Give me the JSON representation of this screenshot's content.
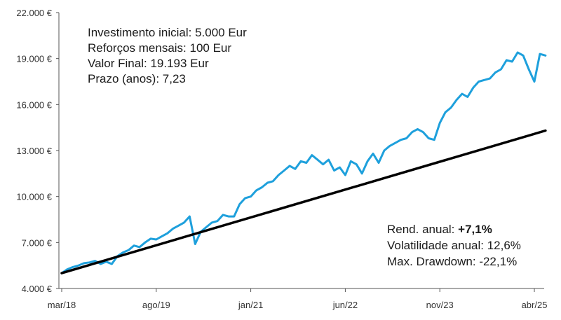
{
  "chart_data": {
    "type": "line",
    "title": "",
    "xlabel": "",
    "ylabel": "",
    "ylim": [
      4000,
      22000
    ],
    "yticks": [
      {
        "value": 4000,
        "label": "4.000 €"
      },
      {
        "value": 7000,
        "label": "7.000 €"
      },
      {
        "value": 10000,
        "label": "10.000 €"
      },
      {
        "value": 13000,
        "label": "13.000 €"
      },
      {
        "value": 16000,
        "label": "16.000 €"
      },
      {
        "value": 19000,
        "label": "19.000 €"
      },
      {
        "value": 22000,
        "label": "22.000 €"
      }
    ],
    "xlim": [
      "2018-03",
      "2025-05"
    ],
    "xticks": [
      {
        "date": "2018-03",
        "label": "mar/18"
      },
      {
        "date": "2019-08",
        "label": "ago/19"
      },
      {
        "date": "2021-01",
        "label": "jan/21"
      },
      {
        "date": "2022-06",
        "label": "jun/22"
      },
      {
        "date": "2023-11",
        "label": "nov/23"
      },
      {
        "date": "2025-04",
        "label": "abr/25"
      }
    ],
    "grid": false,
    "info_lines": [
      "Investimento inicial: 5.000 Eur",
      "Reforços mensais: 100 Eur",
      "Valor Final: 19.193 Eur",
      "Prazo (anos): 7,23"
    ],
    "stats": {
      "return_label": "Rend. anual: ",
      "return_value": "+7,1%",
      "volatility": "Volatilidade anual: 12,6%",
      "drawdown": "Max. Drawdown: -22,1%"
    },
    "series": [
      {
        "color": "#1ea0dc",
        "points": [
          [
            "2018-03",
            5000
          ],
          [
            "2018-04",
            5250
          ],
          [
            "2018-05",
            5400
          ],
          [
            "2018-06",
            5500
          ],
          [
            "2018-07",
            5650
          ],
          [
            "2018-08",
            5700
          ],
          [
            "2018-09",
            5800
          ],
          [
            "2018-10",
            5600
          ],
          [
            "2018-11",
            5750
          ],
          [
            "2018-12",
            5600
          ],
          [
            "2019-01",
            6100
          ],
          [
            "2019-02",
            6350
          ],
          [
            "2019-03",
            6500
          ],
          [
            "2019-04",
            6800
          ],
          [
            "2019-05",
            6700
          ],
          [
            "2019-06",
            7000
          ],
          [
            "2019-07",
            7250
          ],
          [
            "2019-08",
            7200
          ],
          [
            "2019-09",
            7400
          ],
          [
            "2019-10",
            7600
          ],
          [
            "2019-11",
            7900
          ],
          [
            "2019-12",
            8100
          ],
          [
            "2020-01",
            8300
          ],
          [
            "2020-02",
            8700
          ],
          [
            "2020-03",
            6900
          ],
          [
            "2020-04",
            7700
          ],
          [
            "2020-05",
            8000
          ],
          [
            "2020-06",
            8300
          ],
          [
            "2020-07",
            8400
          ],
          [
            "2020-08",
            8800
          ],
          [
            "2020-09",
            8700
          ],
          [
            "2020-10",
            8700
          ],
          [
            "2020-11",
            9500
          ],
          [
            "2020-12",
            9900
          ],
          [
            "2021-01",
            10000
          ],
          [
            "2021-02",
            10400
          ],
          [
            "2021-03",
            10600
          ],
          [
            "2021-04",
            10900
          ],
          [
            "2021-05",
            11000
          ],
          [
            "2021-06",
            11400
          ],
          [
            "2021-07",
            11700
          ],
          [
            "2021-08",
            12000
          ],
          [
            "2021-09",
            11800
          ],
          [
            "2021-10",
            12300
          ],
          [
            "2021-11",
            12200
          ],
          [
            "2021-12",
            12700
          ],
          [
            "2022-01",
            12400
          ],
          [
            "2022-02",
            12100
          ],
          [
            "2022-03",
            12400
          ],
          [
            "2022-04",
            11700
          ],
          [
            "2022-05",
            11900
          ],
          [
            "2022-06",
            11400
          ],
          [
            "2022-07",
            12300
          ],
          [
            "2022-08",
            12100
          ],
          [
            "2022-09",
            11500
          ],
          [
            "2022-10",
            12300
          ],
          [
            "2022-11",
            12800
          ],
          [
            "2022-12",
            12200
          ],
          [
            "2023-01",
            13000
          ],
          [
            "2023-02",
            13300
          ],
          [
            "2023-03",
            13500
          ],
          [
            "2023-04",
            13700
          ],
          [
            "2023-05",
            13800
          ],
          [
            "2023-06",
            14200
          ],
          [
            "2023-07",
            14400
          ],
          [
            "2023-08",
            14200
          ],
          [
            "2023-09",
            13800
          ],
          [
            "2023-10",
            13700
          ],
          [
            "2023-11",
            14800
          ],
          [
            "2023-12",
            15500
          ],
          [
            "2024-01",
            15800
          ],
          [
            "2024-02",
            16300
          ],
          [
            "2024-03",
            16700
          ],
          [
            "2024-04",
            16500
          ],
          [
            "2024-05",
            17100
          ],
          [
            "2024-06",
            17500
          ],
          [
            "2024-07",
            17600
          ],
          [
            "2024-08",
            17700
          ],
          [
            "2024-09",
            18100
          ],
          [
            "2024-10",
            18300
          ],
          [
            "2024-11",
            18900
          ],
          [
            "2024-12",
            18800
          ],
          [
            "2025-01",
            19400
          ],
          [
            "2025-02",
            19200
          ],
          [
            "2025-03",
            18300
          ],
          [
            "2025-04",
            17500
          ],
          [
            "2025-05",
            19300
          ],
          [
            "2025-06",
            19200
          ]
        ]
      },
      {
        "color": "#000000",
        "points": [
          [
            "2018-03",
            5000
          ],
          [
            "2025-06",
            14300
          ]
        ]
      }
    ]
  }
}
